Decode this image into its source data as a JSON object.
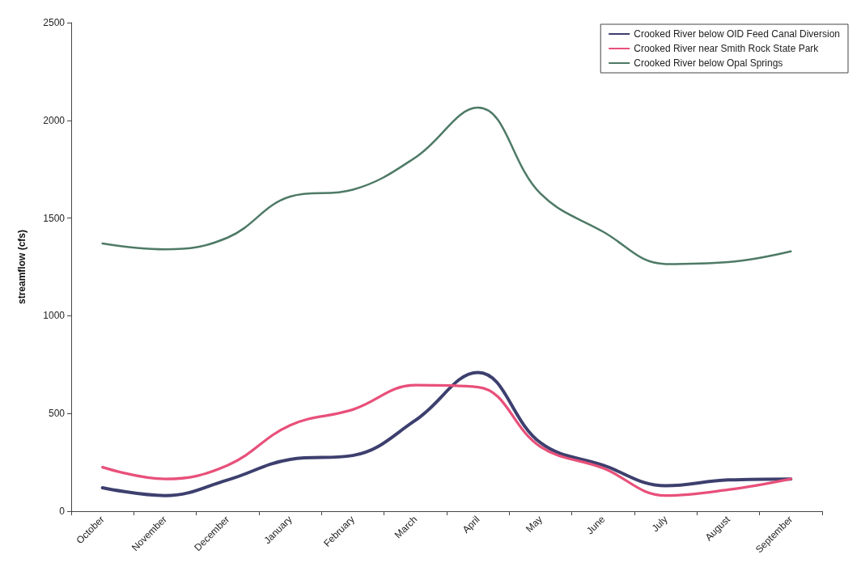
{
  "chart_data": {
    "type": "line",
    "ylabel": "streamflow (cfs)",
    "categories": [
      "October",
      "November",
      "December",
      "January",
      "February",
      "March",
      "April",
      "May",
      "June",
      "July",
      "August",
      "September"
    ],
    "series": [
      {
        "name": "Crooked River below OID Feed Canal Diversion",
        "color": "#3d3f6e",
        "values": [
          120,
          80,
          160,
          265,
          285,
          465,
          710,
          350,
          235,
          130,
          160,
          165
        ]
      },
      {
        "name": "Crooked River near Smith Rock State Park",
        "color": "#e8507a",
        "values": [
          225,
          165,
          235,
          440,
          520,
          645,
          635,
          330,
          220,
          80,
          110,
          165
        ]
      },
      {
        "name": "Crooked River below Opal Springs",
        "color": "#4e7a66",
        "values": [
          1370,
          1340,
          1400,
          1610,
          1645,
          1810,
          2065,
          1625,
          1430,
          1265,
          1275,
          1330
        ]
      }
    ],
    "ylim": [
      0,
      2500
    ],
    "yticks": [
      0,
      500,
      1000,
      1500,
      2000,
      2500
    ],
    "grid": false,
    "legend": "top right",
    "marker": "none",
    "line_style": "solid"
  }
}
